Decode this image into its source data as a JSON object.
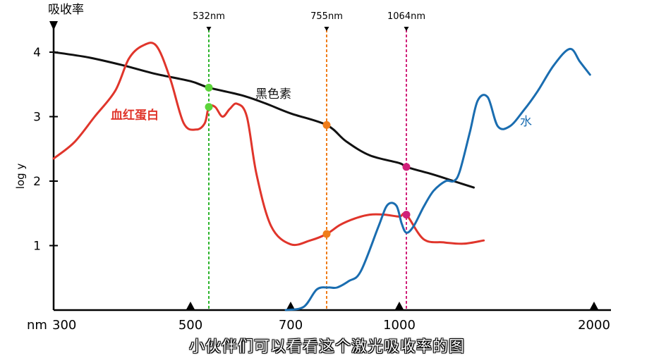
{
  "chart_data": {
    "type": "line",
    "title": "",
    "y_axis_title": "吸收率",
    "ylabel": "log y",
    "x_unit_label": "nm",
    "x_ticks": [
      "300",
      "500",
      "700",
      "1000",
      "2000"
    ],
    "y_ticks": [
      "1",
      "2",
      "3",
      "4"
    ],
    "ylim": [
      0,
      4.4
    ],
    "grid": false,
    "laser_lines": [
      {
        "label": "532nm",
        "nm": 532,
        "color": "#2DB52D"
      },
      {
        "label": "755nm",
        "nm": 755,
        "color": "#F07D1A"
      },
      {
        "label": "1064nm",
        "nm": 1064,
        "color": "#D0217A"
      }
    ],
    "series": [
      {
        "name": "黑色素",
        "color": "#111111",
        "points": [
          [
            300,
            4.0
          ],
          [
            350,
            3.92
          ],
          [
            400,
            3.8
          ],
          [
            450,
            3.66
          ],
          [
            500,
            3.55
          ],
          [
            532,
            3.45
          ],
          [
            600,
            3.33
          ],
          [
            650,
            3.2
          ],
          [
            700,
            3.05
          ],
          [
            755,
            2.87
          ],
          [
            820,
            2.62
          ],
          [
            900,
            2.4
          ],
          [
            1000,
            2.28
          ],
          [
            1064,
            2.22
          ],
          [
            1200,
            2.1
          ],
          [
            1300,
            2.0
          ],
          [
            1400,
            1.9
          ]
        ]
      },
      {
        "name": "血红蛋白",
        "color": "#E0352B",
        "points": [
          [
            300,
            2.35
          ],
          [
            330,
            2.6
          ],
          [
            360,
            3.0
          ],
          [
            390,
            3.4
          ],
          [
            410,
            3.9
          ],
          [
            430,
            4.1
          ],
          [
            450,
            4.1
          ],
          [
            470,
            3.6
          ],
          [
            490,
            2.9
          ],
          [
            510,
            2.8
          ],
          [
            525,
            2.9
          ],
          [
            532,
            3.15
          ],
          [
            545,
            3.15
          ],
          [
            560,
            3.0
          ],
          [
            575,
            3.12
          ],
          [
            590,
            3.2
          ],
          [
            610,
            3.0
          ],
          [
            630,
            2.1
          ],
          [
            660,
            1.3
          ],
          [
            700,
            1.02
          ],
          [
            730,
            1.08
          ],
          [
            755,
            1.18
          ],
          [
            800,
            1.32
          ],
          [
            850,
            1.42
          ],
          [
            900,
            1.48
          ],
          [
            950,
            1.48
          ],
          [
            1000,
            1.45
          ],
          [
            1064,
            1.48
          ],
          [
            1150,
            1.1
          ],
          [
            1250,
            1.05
          ],
          [
            1350,
            1.03
          ],
          [
            1450,
            1.08
          ]
        ]
      },
      {
        "name": "水",
        "color": "#1A6DB0",
        "points": [
          [
            690,
            0.0
          ],
          [
            720,
            0.05
          ],
          [
            740,
            0.32
          ],
          [
            760,
            0.35
          ],
          [
            790,
            0.35
          ],
          [
            830,
            0.45
          ],
          [
            870,
            0.6
          ],
          [
            930,
            1.3
          ],
          [
            960,
            1.63
          ],
          [
            990,
            1.62
          ],
          [
            1020,
            1.35
          ],
          [
            1064,
            1.2
          ],
          [
            1100,
            1.3
          ],
          [
            1150,
            1.6
          ],
          [
            1200,
            1.85
          ],
          [
            1260,
            2.0
          ],
          [
            1300,
            2.0
          ],
          [
            1330,
            2.15
          ],
          [
            1380,
            2.75
          ],
          [
            1420,
            3.25
          ],
          [
            1470,
            3.3
          ],
          [
            1520,
            2.85
          ],
          [
            1580,
            2.85
          ],
          [
            1650,
            3.1
          ],
          [
            1720,
            3.4
          ],
          [
            1800,
            3.8
          ],
          [
            1880,
            4.05
          ],
          [
            1930,
            3.85
          ],
          [
            1980,
            3.65
          ]
        ]
      }
    ],
    "markers": [
      {
        "nm": 532,
        "y": 3.45,
        "color": "#5CD43A"
      },
      {
        "nm": 532,
        "y": 3.15,
        "color": "#5CD43A"
      },
      {
        "nm": 755,
        "y": 2.87,
        "color": "#F07D1A"
      },
      {
        "nm": 755,
        "y": 1.18,
        "color": "#F07D1A"
      },
      {
        "nm": 1064,
        "y": 2.22,
        "color": "#D0217A"
      },
      {
        "nm": 1064,
        "y": 1.48,
        "color": "#D0217A"
      }
    ],
    "series_labels": [
      "黑色素",
      "血红蛋白",
      "水"
    ]
  },
  "caption": "小伙伴们可以看看这个激光吸收率的图"
}
